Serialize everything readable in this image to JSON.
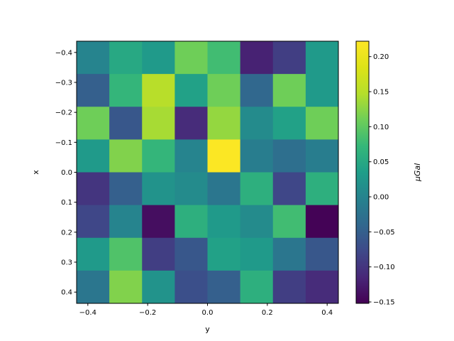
{
  "chart_data": {
    "type": "heatmap",
    "title": "",
    "xlabel": "y",
    "ylabel": "x",
    "colorbar_label": "μGal",
    "colormap": "viridis",
    "x": [
      -0.4,
      -0.3,
      -0.2,
      -0.1,
      0.0,
      0.1,
      0.2,
      0.3,
      0.4
    ],
    "y": [
      -0.4,
      -0.3,
      -0.2,
      -0.1,
      0.0,
      0.1,
      0.2,
      0.3,
      0.4
    ],
    "xlim": [
      -0.4375,
      0.4375
    ],
    "ylim": [
      0.4375,
      -0.4375
    ],
    "clim": [
      -0.152,
      0.222
    ],
    "x_ticks": [
      -0.4,
      -0.2,
      0.0,
      0.2,
      0.4
    ],
    "x_tick_labels": [
      "−0.4",
      "−0.2",
      "0.0",
      "0.2",
      "0.4"
    ],
    "y_ticks": [
      -0.4,
      -0.3,
      -0.2,
      -0.1,
      0.0,
      0.1,
      0.2,
      0.3,
      0.4
    ],
    "y_tick_labels": [
      "−0.4",
      "−0.3",
      "−0.2",
      "−0.1",
      "0.0",
      "0.1",
      "0.2",
      "0.3",
      "0.4"
    ],
    "colorbar_ticks": [
      -0.15,
      -0.1,
      -0.05,
      0.0,
      0.05,
      0.1,
      0.15,
      0.2
    ],
    "colorbar_tick_labels": [
      "−0.15",
      "−0.10",
      "−0.05",
      "0.00",
      "0.05",
      "0.10",
      "0.15",
      "0.20"
    ],
    "values": [
      [
        0.0,
        0.05,
        0.03,
        0.11,
        0.08,
        -0.12,
        -0.09,
        0.03
      ],
      [
        -0.05,
        0.07,
        0.15,
        0.04,
        0.11,
        -0.04,
        0.11,
        0.03
      ],
      [
        0.11,
        -0.06,
        0.14,
        -0.11,
        0.13,
        0.01,
        0.04,
        0.11
      ],
      [
        0.03,
        0.12,
        0.07,
        0.0,
        0.22,
        -0.01,
        -0.03,
        -0.01
      ],
      [
        -0.1,
        -0.05,
        0.02,
        0.01,
        -0.02,
        0.06,
        -0.08,
        0.06
      ],
      [
        -0.08,
        0.0,
        -0.14,
        0.06,
        0.03,
        0.01,
        0.08,
        -0.15
      ],
      [
        0.03,
        0.09,
        -0.09,
        -0.06,
        0.04,
        0.03,
        -0.02,
        -0.06
      ],
      [
        -0.02,
        0.12,
        0.02,
        -0.07,
        -0.05,
        0.06,
        -0.09,
        -0.11
      ]
    ],
    "grid": false
  }
}
